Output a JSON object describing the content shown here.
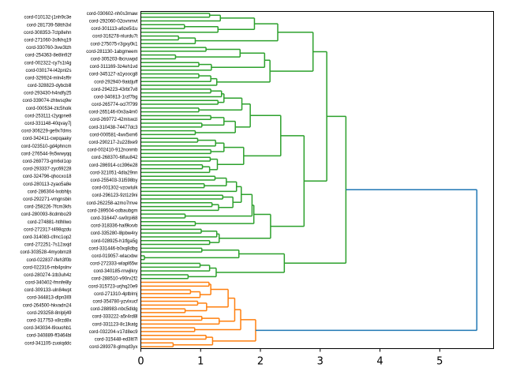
{
  "chart_data": {
    "type": "dendrogram",
    "orientation": "left",
    "title": "",
    "xlabel": "",
    "ylabel": "",
    "xlim": [
      0,
      5.9
    ],
    "xticks": [
      0,
      1,
      2,
      3,
      4,
      5
    ],
    "grid": false,
    "colors": {
      "cluster_1": "#2ca02c",
      "cluster_2": "#ff7f0e",
      "above_threshold": "#1f77b4"
    },
    "leaf_labels": [
      "cord-030602-nh0s3maw",
      "cord-010132-j1nh9c3e",
      "cord-292060-02ovnmvt",
      "cord-281739-58tth3xl",
      "cord-301113-a6ze5i1u",
      "cord-308353-7ctp8ehn",
      "cord-316278-nlurdu7t",
      "cord-271060-3sfkhq19",
      "cord-275075-r3gxy0k1",
      "cord-330760-3vw3lzh",
      "cord-281130-1abgmeem",
      "cord-254363-8e8ln92f",
      "cord-305203-lbcruwpd",
      "cord-002322-cy7s1t4g",
      "cord-311169-3z4eh1vd",
      "cord-030174-l42pnl2s",
      "cord-345127-a1yoocg8",
      "cord-329924-mln4sf9r",
      "cord-292940-9atdjuff",
      "cord-328823-dybcbill",
      "cord-294223-43rbt7v8",
      "cord-293430-h4ndfy25",
      "cord-340813-1rzf7bg",
      "cord-339074-zhtwsq9w",
      "cord-265774-ocl7f799",
      "cord-000534-ztc5holk",
      "cord-265146-l0n3a4m0",
      "cord-253111-i2yqpne8",
      "cord-269772-42mlswzi",
      "cord-331148-40qvay7j",
      "cord-310438-74477dc3",
      "cord-306229-ge9x7dms",
      "cord-000581-4wx5xm6",
      "cord-342411-cwpqaaky",
      "cord-290217-2u228xe9",
      "cord-023510-gd4phncm",
      "cord-002410-912nonmb",
      "cord-276544-9s5wwyqq",
      "cord-268370-6lfuu842",
      "cord-269773-gm6ol1op",
      "cord-286914-cc396e28",
      "cord-293337-zyc69228",
      "cord-321051-4dla29nn",
      "cord-324796-qhocxo18",
      "cord-255403-31l598by",
      "cord-280113-zyao5a8e",
      "cord-001302-vzcwlulk",
      "cord-286304-lxobhljs",
      "cord-296123-9zt1z9ni",
      "cord-292271-vmgnsbin",
      "cord-262258-azmo7mve",
      "cord-258226-7fcm3kfs",
      "cord-289504-odbaubgm",
      "cord-280093-8cdmbo29",
      "cord-316447-sw0rpi68",
      "cord-274881-htlhllwo",
      "cord-318336-hal9kxvb",
      "cord-272317-t498qzdu",
      "cord-335280-l8pbw4ry",
      "cord-314083-cfmc1op2",
      "cord-028925-h1tfga5g",
      "cord-272251-7s12axjd",
      "cord-331446-b0xq8dbg",
      "cord-303528-4myobmz8",
      "cord-019057-wlacxbw",
      "cord-022837-lfeh3f0b",
      "cord-272333-wlapl65w",
      "cord-022316-mb4pslnv",
      "cord-340185-rnwjlkry",
      "cord-280274-1tb3uh4z",
      "cord-288510-v90rv2f2",
      "cord-340402-fmnfe8ly",
      "cord-315723-urjhq20e9",
      "cord-309133-uln84wpt",
      "cord-271310-4ptblrnj",
      "cord-344813-dlpn3l0l",
      "cord-354780-yzvlxucf",
      "cord-264500-hkvadn24",
      "cord-288983-nbc5dldg",
      "cord-293258-8nlplj49",
      "cord-333222-a5r4rd8l",
      "cord-317753-x8rzd8x",
      "cord-331123-8c1lkatg",
      "cord-343034-l9ouohb1",
      "cord-032204-v17d8ec9",
      "cord-340889-ff3464bl",
      "cord-315448-ed3ltl7l",
      "cord-341105-zuoiqddc",
      "cord-289378-glmqd3yx"
    ],
    "linkage_tree": [
      [
        [
          [
            [
              [
                [
                  [
                    0,
                    1,
                    1.15
                  ],
                  2,
                  1.33
                ],
                [
                  [
                    3,
                    4,
                    0.73
                  ],
                  5,
                  1.29
                ],
                1.9
              ],
              [
                [
                  6,
                  7,
                  0.63
                ],
                8,
                0.91
              ],
              2.29
            ],
            [
              [
                [
                  [
                    9,
                    10,
                    1.09
                  ],
                  [
                    11,
                    12,
                    0.58
                  ],
                  1.66
                ],
                [
                  [
                    13,
                    14,
                    0.97
                  ],
                  15,
                  1.18
                ],
                2.07
              ],
              [
                [
                  [
                    16,
                    17,
                    0.97
                  ],
                  18,
                  1.17
                ],
                19,
                1.27
              ],
              2.16
            ],
            2.88
          ],
          [
            [
              [
                [
                  [
                    [
                      [
                        20,
                        21,
                        1.17
                      ],
                      22,
                      1.35
                    ],
                    [
                      23,
                      24,
                      1.29
                    ],
                    1.39
                  ],
                  [
                    25,
                    26,
                    0.97
                  ],
                  1.69
                ],
                [
                  [
                    [
                      27,
                      28,
                      1.17
                    ],
                    [
                      29,
                      30,
                      1.02
                    ],
                    1.39
                  ],
                  [
                    31,
                    32,
                    0.91
                  ],
                  1.58
                ],
                1.83
              ],
              [
                [
                  [
                    [
                      33,
                      34,
                      0.95
                    ],
                    35,
                    1.25
                  ],
                  [
                    36,
                    37,
                    1.17
                  ],
                  1.39
                ],
                [
                  [
                    38,
                    39,
                    1.16
                  ],
                  [
                    [
                      40,
                      41,
                      1.03
                    ],
                    42,
                    1.15
                  ],
                  1.28
                ],
                1.72
              ],
              2.34
            ],
            [
              [
                [
                  [
                    [
                      [
                        [
                          43,
                          44,
                          1.24
                        ],
                        [
                          45,
                          46,
                          1.06
                        ],
                        1.43
                      ],
                      47,
                      1.6
                    ],
                    [
                      [
                        48,
                        49,
                        1.37
                      ],
                      [
                        [
                          50,
                          51,
                          1.19
                        ],
                        52,
                        1.3
                      ],
                      1.54
                    ],
                    1.68
                  ],
                  [
                    53,
                    54,
                    0.74
                  ],
                  1.86
                ],
                [
                  55,
                  56,
                  0.91
                ],
                1.89
              ],
              [
                [
                  [
                    57,
                    58,
                    1.01
                  ],
                  59,
                  1.27
                ],
                [
                  60,
                  61,
                  1.15
                ],
                1.31
              ],
              2.17
            ],
            2.73
          ],
          3.11
        ],
        [
          [
            [
              62,
              63,
              1.02
            ],
            [
              64,
              65,
              0.06
            ],
            1.64
          ],
          [
            [
              [
                66,
                67,
                0.99
              ],
              68,
              1.15
            ],
            [
              69,
              70,
              0.79
            ],
            1.26
          ],
          2.4
        ],
        3.43
      ],
      [
        [
          [
            [
              [
                [
                  71,
                  72,
                  1.14
                ],
                [
                  [
                    73,
                    74,
                    0.83
                  ],
                  75,
                  0.99
                ],
                1.17
              ],
              [
                [
                  76,
                  77,
                  0.95
                ],
                [
                  78,
                  79,
                  0.74
                ],
                1.1
              ],
              1.46
            ],
            [
              [
                80,
                81,
                1.02
              ],
              82,
              1.31
            ],
            1.57
          ],
          [
            83,
            84,
            0.9
          ],
          1.67
        ],
        [
          [
            85,
            86,
            1.09
          ],
          [
            87,
            88,
            0.54
          ],
          1.2
        ],
        1.92
      ],
      5.62
    ]
  }
}
